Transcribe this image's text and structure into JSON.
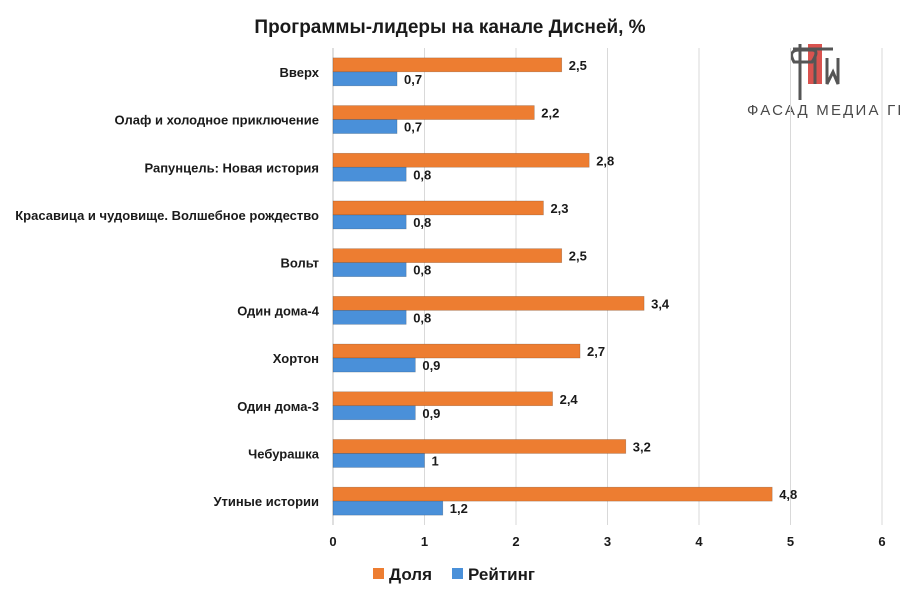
{
  "logo": {
    "text": "ФАСАД МЕДИА ГРУПП"
  },
  "colors": {
    "share": "#ed7d31",
    "rating": "#4a90d9",
    "grid": "#d9d9d9"
  },
  "chart_data": {
    "type": "bar",
    "orientation": "horizontal",
    "title": "Программы-лидеры на канале Дисней, %",
    "categories": [
      "Вверх",
      "Олаф и холодное приключение",
      "Рапунцель: Новая история",
      "Красавица и чудовище. Волшебное рождество",
      "Вольт",
      "Один дома-4",
      "Хортон",
      "Один дома-3",
      "Чебурашка",
      "Утиные истории"
    ],
    "series": [
      {
        "name": "Доля",
        "values": [
          2.5,
          2.2,
          2.8,
          2.3,
          2.5,
          3.4,
          2.7,
          2.4,
          3.2,
          4.8
        ],
        "labels": [
          "2,5",
          "2,2",
          "2,8",
          "2,3",
          "2,5",
          "3,4",
          "2,7",
          "2,4",
          "3,2",
          "4,8"
        ]
      },
      {
        "name": "Рейтинг",
        "values": [
          0.7,
          0.7,
          0.8,
          0.8,
          0.8,
          0.8,
          0.9,
          0.9,
          1,
          1.2
        ],
        "labels": [
          "0,7",
          "0,7",
          "0,8",
          "0,8",
          "0,8",
          "0,8",
          "0,9",
          "0,9",
          "1",
          "1,2"
        ]
      }
    ],
    "xlim": [
      0,
      6
    ],
    "xticks": [
      "0",
      "1",
      "2",
      "3",
      "4",
      "5",
      "6"
    ],
    "grid": true,
    "legend_position": "bottom"
  }
}
